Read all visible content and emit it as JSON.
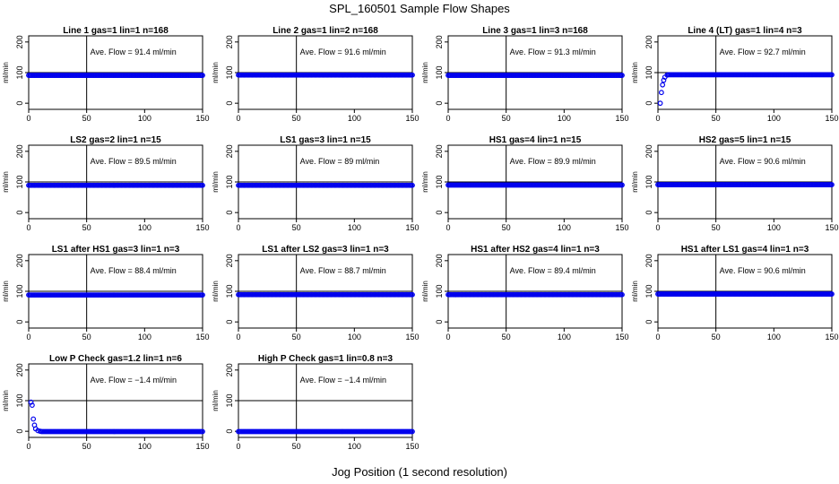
{
  "title": "SPL_160501  Sample Flow Shapes",
  "xlabel": "Jog Position (1 second resolution)",
  "colors": {
    "points": "#0000ee",
    "axes": "#000000"
  },
  "chart_data": [
    {
      "type": "scatter",
      "title": "Line 1 gas=1 lin=1 n=168",
      "ylabel": "ml/min",
      "annotation": "Ave. Flow =  91.4  ml/min",
      "xlim": [
        0,
        150
      ],
      "ylim": [
        -20,
        220
      ],
      "xticks": [
        0,
        50,
        100,
        150
      ],
      "yticks": [
        0,
        100,
        200
      ],
      "vline_x": 50,
      "hline_y": 100,
      "points": [
        {
          "x": 0,
          "y": 91
        },
        {
          "x": 150,
          "y": 91
        }
      ],
      "profile": "flat"
    },
    {
      "type": "scatter",
      "title": "Line 2 gas=1 lin=2 n=168",
      "ylabel": "ml/min",
      "annotation": "Ave. Flow =  91.6  ml/min",
      "xlim": [
        0,
        150
      ],
      "ylim": [
        -20,
        220
      ],
      "xticks": [
        0,
        50,
        100,
        150
      ],
      "yticks": [
        0,
        100,
        200
      ],
      "vline_x": 50,
      "hline_y": 100,
      "points": [
        {
          "x": 0,
          "y": 92
        },
        {
          "x": 150,
          "y": 92
        }
      ],
      "profile": "flat"
    },
    {
      "type": "scatter",
      "title": "Line 3 gas=1 lin=3 n=168",
      "ylabel": "ml/min",
      "annotation": "Ave. Flow =  91.3  ml/min",
      "xlim": [
        0,
        150
      ],
      "ylim": [
        -20,
        220
      ],
      "xticks": [
        0,
        50,
        100,
        150
      ],
      "yticks": [
        0,
        100,
        200
      ],
      "vline_x": 50,
      "hline_y": 100,
      "points": [
        {
          "x": 0,
          "y": 91
        },
        {
          "x": 150,
          "y": 91
        }
      ],
      "profile": "flat"
    },
    {
      "type": "scatter",
      "title": "Line 4 (LT) gas=1 lin=4 n=3",
      "ylabel": "ml/min",
      "annotation": "Ave. Flow =  92.7  ml/min",
      "xlim": [
        0,
        150
      ],
      "ylim": [
        -20,
        220
      ],
      "xticks": [
        0,
        50,
        100,
        150
      ],
      "yticks": [
        0,
        100,
        200
      ],
      "vline_x": 50,
      "hline_y": 100,
      "points": [
        {
          "x": 2,
          "y": 0
        },
        {
          "x": 3,
          "y": 35
        },
        {
          "x": 4,
          "y": 60
        },
        {
          "x": 5,
          "y": 75
        },
        {
          "x": 6,
          "y": 85
        },
        {
          "x": 8,
          "y": 92
        },
        {
          "x": 150,
          "y": 93
        }
      ],
      "profile": "ramp"
    },
    {
      "type": "scatter",
      "title": "LS2 gas=2 lin=1 n=15",
      "ylabel": "ml/min",
      "annotation": "Ave. Flow =  89.5  ml/min",
      "xlim": [
        0,
        150
      ],
      "ylim": [
        -20,
        220
      ],
      "xticks": [
        0,
        50,
        100,
        150
      ],
      "yticks": [
        0,
        100,
        200
      ],
      "vline_x": 50,
      "hline_y": 100,
      "points": [
        {
          "x": 0,
          "y": 89
        },
        {
          "x": 150,
          "y": 89
        }
      ],
      "profile": "flat"
    },
    {
      "type": "scatter",
      "title": "LS1 gas=3 lin=1 n=15",
      "ylabel": "ml/min",
      "annotation": "Ave. Flow =  89  ml/min",
      "xlim": [
        0,
        150
      ],
      "ylim": [
        -20,
        220
      ],
      "xticks": [
        0,
        50,
        100,
        150
      ],
      "yticks": [
        0,
        100,
        200
      ],
      "vline_x": 50,
      "hline_y": 100,
      "points": [
        {
          "x": 0,
          "y": 89
        },
        {
          "x": 150,
          "y": 89
        }
      ],
      "profile": "flat"
    },
    {
      "type": "scatter",
      "title": "HS1 gas=4 lin=1 n=15",
      "ylabel": "ml/min",
      "annotation": "Ave. Flow =  89.9  ml/min",
      "xlim": [
        0,
        150
      ],
      "ylim": [
        -20,
        220
      ],
      "xticks": [
        0,
        50,
        100,
        150
      ],
      "yticks": [
        0,
        100,
        200
      ],
      "vline_x": 50,
      "hline_y": 100,
      "points": [
        {
          "x": 0,
          "y": 90
        },
        {
          "x": 150,
          "y": 90
        }
      ],
      "profile": "flat"
    },
    {
      "type": "scatter",
      "title": "HS2 gas=5 lin=1 n=15",
      "ylabel": "ml/min",
      "annotation": "Ave. Flow =  90.6  ml/min",
      "xlim": [
        0,
        150
      ],
      "ylim": [
        -20,
        220
      ],
      "xticks": [
        0,
        50,
        100,
        150
      ],
      "yticks": [
        0,
        100,
        200
      ],
      "vline_x": 50,
      "hline_y": 100,
      "points": [
        {
          "x": 0,
          "y": 91
        },
        {
          "x": 150,
          "y": 91
        }
      ],
      "profile": "flat"
    },
    {
      "type": "scatter",
      "title": "LS1 after HS1 gas=3 lin=1 n=3",
      "ylabel": "ml/min",
      "annotation": "Ave. Flow =  88.4  ml/min",
      "xlim": [
        0,
        150
      ],
      "ylim": [
        -20,
        220
      ],
      "xticks": [
        0,
        50,
        100,
        150
      ],
      "yticks": [
        0,
        100,
        200
      ],
      "vline_x": 50,
      "hline_y": 100,
      "points": [
        {
          "x": 0,
          "y": 88
        },
        {
          "x": 150,
          "y": 88
        }
      ],
      "profile": "flat"
    },
    {
      "type": "scatter",
      "title": "LS1 after LS2 gas=3 lin=1 n=3",
      "ylabel": "ml/min",
      "annotation": "Ave. Flow =  88.7  ml/min",
      "xlim": [
        0,
        150
      ],
      "ylim": [
        -20,
        220
      ],
      "xticks": [
        0,
        50,
        100,
        150
      ],
      "yticks": [
        0,
        100,
        200
      ],
      "vline_x": 50,
      "hline_y": 100,
      "points": [
        {
          "x": 0,
          "y": 89
        },
        {
          "x": 150,
          "y": 89
        }
      ],
      "profile": "flat"
    },
    {
      "type": "scatter",
      "title": "HS1 after HS2 gas=4 lin=1 n=3",
      "ylabel": "ml/min",
      "annotation": "Ave. Flow =  89.4  ml/min",
      "xlim": [
        0,
        150
      ],
      "ylim": [
        -20,
        220
      ],
      "xticks": [
        0,
        50,
        100,
        150
      ],
      "yticks": [
        0,
        100,
        200
      ],
      "vline_x": 50,
      "hline_y": 100,
      "points": [
        {
          "x": 0,
          "y": 89
        },
        {
          "x": 150,
          "y": 89
        }
      ],
      "profile": "flat"
    },
    {
      "type": "scatter",
      "title": "HS1 after LS1 gas=4 lin=1 n=3",
      "ylabel": "ml/min",
      "annotation": "Ave. Flow =  90.6  ml/min",
      "xlim": [
        0,
        150
      ],
      "ylim": [
        -20,
        220
      ],
      "xticks": [
        0,
        50,
        100,
        150
      ],
      "yticks": [
        0,
        100,
        200
      ],
      "vline_x": 50,
      "hline_y": 100,
      "points": [
        {
          "x": 0,
          "y": 91
        },
        {
          "x": 150,
          "y": 91
        }
      ],
      "profile": "flat"
    },
    {
      "type": "scatter",
      "title": "Low P Check gas=1.2 lin=1 n=6",
      "ylabel": "ml/min",
      "annotation": "Ave. Flow =  −1.4  ml/min",
      "xlim": [
        0,
        150
      ],
      "ylim": [
        -20,
        220
      ],
      "xticks": [
        0,
        50,
        100,
        150
      ],
      "yticks": [
        0,
        100,
        200
      ],
      "vline_x": 50,
      "hline_y": 100,
      "points": [
        {
          "x": 2,
          "y": 95
        },
        {
          "x": 3,
          "y": 85
        },
        {
          "x": 4,
          "y": 40
        },
        {
          "x": 5,
          "y": 20
        },
        {
          "x": 6,
          "y": 8
        },
        {
          "x": 8,
          "y": 2
        },
        {
          "x": 10,
          "y": 0
        },
        {
          "x": 150,
          "y": -1
        }
      ],
      "profile": "decay"
    },
    {
      "type": "scatter",
      "title": "High P Check gas=1 lin=0.8 n=3",
      "ylabel": "ml/min",
      "annotation": "Ave. Flow =  −1.4  ml/min",
      "xlim": [
        0,
        150
      ],
      "ylim": [
        -20,
        220
      ],
      "xticks": [
        0,
        50,
        100,
        150
      ],
      "yticks": [
        0,
        100,
        200
      ],
      "vline_x": 50,
      "hline_y": 100,
      "points": [
        {
          "x": 0,
          "y": -1
        },
        {
          "x": 150,
          "y": -1
        }
      ],
      "profile": "flat"
    }
  ]
}
